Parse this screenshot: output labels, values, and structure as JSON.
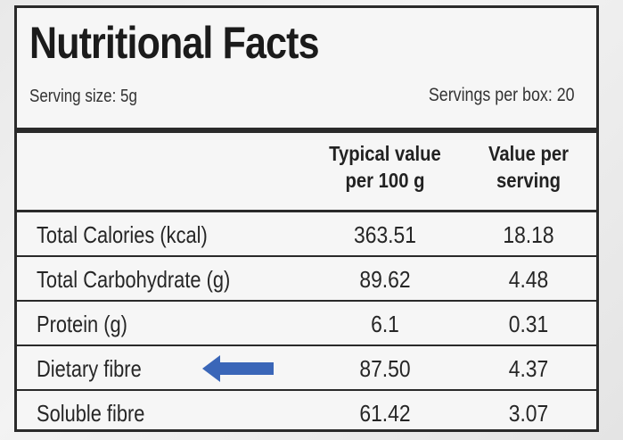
{
  "label": {
    "title": "Nutritional Facts",
    "serving_size": "Serving size: 5g",
    "servings_per_box": "Servings per box: 20",
    "columns": {
      "typical_line1": "Typical value",
      "typical_line2": "per 100 g",
      "serving_line1": "Value per",
      "serving_line2": "serving"
    },
    "rows": [
      {
        "name": "Total Calories (kcal)",
        "per_100g": "363.51",
        "per_serving": "18.18"
      },
      {
        "name": "Total Carbohydrate (g)",
        "per_100g": "89.62",
        "per_serving": "4.48"
      },
      {
        "name": "Protein (g)",
        "per_100g": "6.1",
        "per_serving": "0.31"
      },
      {
        "name": "Dietary fibre",
        "per_100g": "87.50",
        "per_serving": "4.37"
      },
      {
        "name": "Soluble fibre",
        "per_100g": "61.42",
        "per_serving": "3.07"
      }
    ],
    "arrow_color": "#3a66b8"
  }
}
